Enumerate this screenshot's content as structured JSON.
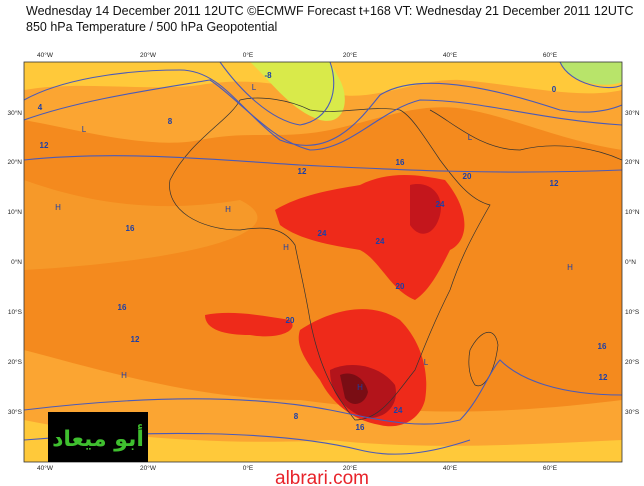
{
  "header": {
    "line1": "Wednesday 14 December 2011 12UTC ©ECMWF Forecast t+168 VT: Wednesday 21 December 2011 12UTC",
    "line2": "850 hPa Temperature / 500 hPa Geopotential"
  },
  "axes": {
    "lon_labels": [
      "40°W",
      "20°W",
      "0°E",
      "20°E",
      "40°E",
      "60°E"
    ],
    "lat_labels": [
      "30°N",
      "20°N",
      "10°N",
      "0°N",
      "10°S",
      "20°S",
      "30°S"
    ]
  },
  "contour_labels": [
    "4",
    "8",
    "12",
    "12",
    "16",
    "16",
    "12",
    "20",
    "24",
    "24",
    "24",
    "16",
    "20",
    "12",
    "16",
    "12",
    "20",
    "24",
    "8",
    "16",
    "0",
    "-8"
  ],
  "highs_lows": [
    "L",
    "L",
    "H",
    "H",
    "H",
    "H",
    "H",
    "L",
    "H",
    "L"
  ],
  "logo": {
    "text": "أبو ميعاد"
  },
  "watermark": "albrari.com"
}
